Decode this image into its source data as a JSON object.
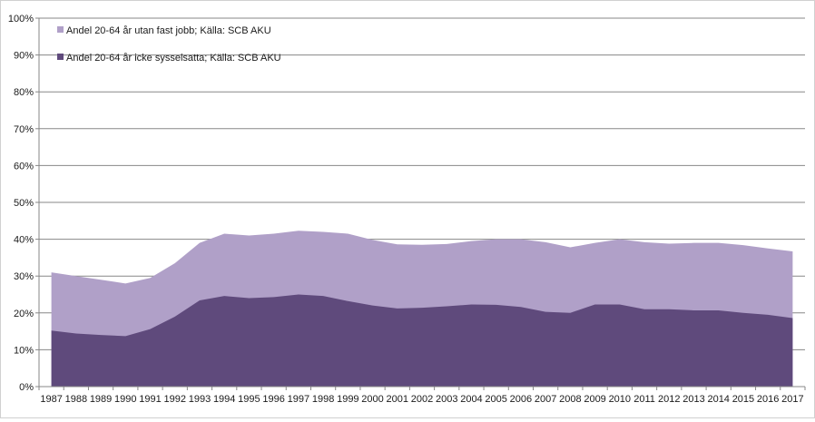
{
  "chart_data": {
    "type": "area",
    "stacked": false,
    "title": "",
    "xlabel": "",
    "ylabel": "",
    "ylim": [
      0,
      100
    ],
    "y_unit": "%",
    "y_ticks": [
      "0%",
      "10%",
      "20%",
      "30%",
      "40%",
      "50%",
      "60%",
      "70%",
      "80%",
      "90%",
      "100%"
    ],
    "grid": true,
    "legend_position": "top-left",
    "categories": [
      "1987",
      "1988",
      "1989",
      "1990",
      "1991",
      "1992",
      "1993",
      "1994",
      "1995",
      "1996",
      "1997",
      "1998",
      "1999",
      "2000",
      "2001",
      "2002",
      "2003",
      "2004",
      "2005",
      "2006",
      "2007",
      "2008",
      "2009",
      "2010",
      "2011",
      "2012",
      "2013",
      "2014",
      "2015",
      "2016",
      "2017"
    ],
    "series": [
      {
        "name": "Andel  20-64 år utan fast jobb; Källa: SCB AKU",
        "color": "#b0a0c8",
        "values": [
          31,
          30,
          29,
          28,
          29.5,
          33.5,
          39,
          41.5,
          41,
          41.5,
          42.3,
          42,
          41.5,
          39.8,
          38.6,
          38.5,
          38.7,
          39.5,
          40,
          40,
          39.2,
          37.8,
          39,
          40,
          39.2,
          38.8,
          39,
          39,
          38.4,
          37.5,
          36.7
        ]
      },
      {
        "name": "Andel  20-64 år icke sysselsatta; Källa: SCB AKU",
        "color": "#5f4a7c",
        "values": [
          15.2,
          14.4,
          14,
          13.7,
          15.6,
          19,
          23.4,
          24.6,
          24,
          24.3,
          25,
          24.6,
          23.2,
          22,
          21.2,
          21.4,
          21.8,
          22.3,
          22.2,
          21.6,
          20.3,
          20,
          22.3,
          22.3,
          21,
          21,
          20.7,
          20.7,
          20,
          19.5,
          18.6
        ]
      }
    ]
  }
}
